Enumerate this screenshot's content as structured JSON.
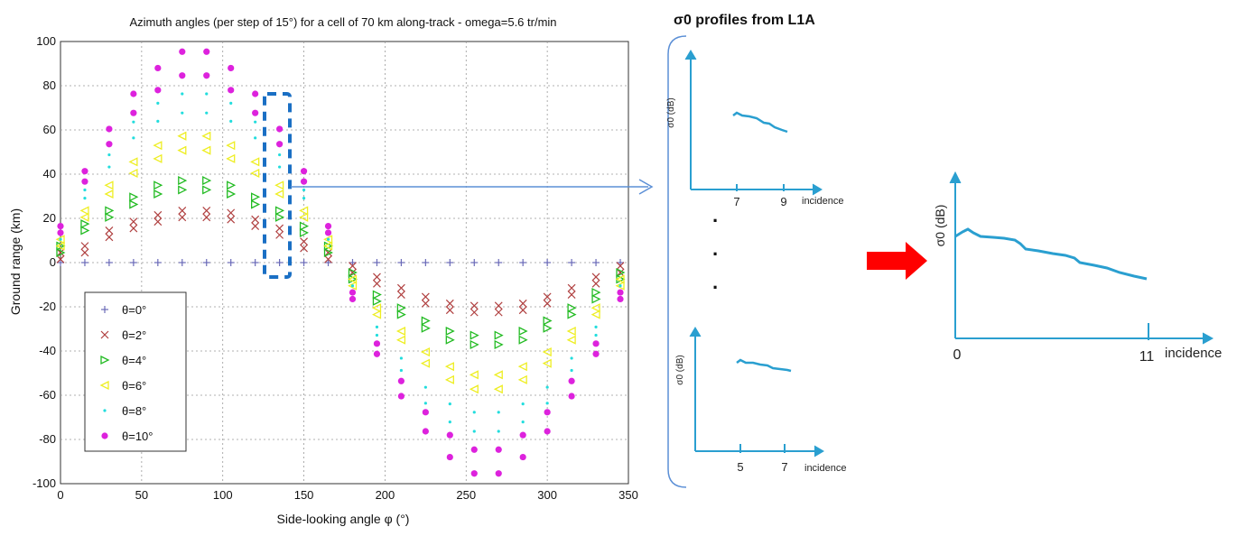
{
  "main_chart": {
    "title": "Azimuth angles (per step of 15°) for a cell of 70 km along-track - omega=5.6 tr/min",
    "xlabel": "Side-looking angle φ (°)",
    "ylabel": "Ground range (km)",
    "xticks": [
      "0",
      "50",
      "100",
      "150",
      "200",
      "250",
      "300",
      "350"
    ],
    "yticks": [
      "100",
      "80",
      "60",
      "40",
      "20",
      "0",
      "-20",
      "-40",
      "-60",
      "-80",
      "-100"
    ]
  },
  "chart_data": {
    "type": "scatter",
    "title": "Azimuth angles (per step of 15°) for a cell of 70 km along-track - omega=5.6 tr/min",
    "xlabel": "Side-looking angle φ (°)",
    "ylabel": "Ground range (km)",
    "xlim": [
      0,
      350
    ],
    "ylim": [
      -100,
      100
    ],
    "grid": true,
    "legend_position": "bottom-left",
    "x": [
      0,
      15,
      30,
      45,
      60,
      75,
      90,
      105,
      120,
      135,
      150,
      165,
      180,
      195,
      210,
      225,
      240,
      255,
      270,
      285,
      300,
      315,
      330,
      345
    ],
    "series": [
      {
        "name": "θ=0°",
        "marker": "plus",
        "color": "#6a6ab8",
        "y": [
          0,
          0,
          0,
          0,
          0,
          0,
          0,
          0,
          0,
          0,
          0,
          0,
          0,
          0,
          0,
          0,
          0,
          0,
          0,
          0,
          0,
          0,
          0,
          0
        ]
      },
      {
        "name": "θ=2°",
        "marker": "x",
        "color": "#b04040",
        "y": [
          3,
          6,
          13,
          17,
          20,
          22,
          22,
          21,
          18,
          14,
          8,
          3,
          -3,
          -8,
          -13,
          -17,
          -20,
          -21,
          -21,
          -20,
          -17,
          -13,
          -8,
          -3
        ]
      },
      {
        "name": "θ=4°",
        "marker": "triangle-right",
        "color": "#22bb22",
        "y": [
          6,
          16,
          22,
          28,
          33,
          35,
          35,
          33,
          28,
          22,
          15,
          6,
          -6,
          -16,
          -22,
          -28,
          -33,
          -35,
          -35,
          -33,
          -28,
          -22,
          -15,
          -6
        ]
      },
      {
        "name": "θ=6°",
        "marker": "triangle-left",
        "color": "#eeee22",
        "y": [
          9,
          22,
          33,
          43,
          50,
          54,
          54,
          50,
          43,
          33,
          22,
          9,
          -9,
          -22,
          -33,
          -43,
          -50,
          -54,
          -54,
          -50,
          -43,
          -33,
          -22,
          -9
        ]
      },
      {
        "name": "θ=8°",
        "marker": "dot",
        "color": "#22dddd",
        "y": [
          12,
          31,
          46,
          60,
          68,
          72,
          72,
          68,
          60,
          46,
          31,
          12,
          -12,
          -31,
          -46,
          -60,
          -68,
          -72,
          -72,
          -68,
          -60,
          -46,
          -31,
          -12
        ]
      },
      {
        "name": "θ=10°",
        "marker": "asterisk",
        "color": "#dd22dd",
        "y": [
          15,
          39,
          57,
          72,
          83,
          90,
          90,
          83,
          72,
          57,
          39,
          15,
          -15,
          -39,
          -57,
          -72,
          -83,
          -90,
          -90,
          -83,
          -72,
          -57,
          -39,
          -15
        ]
      }
    ]
  },
  "right_panel": {
    "title": "σ0 profiles from L1A",
    "top_profile": {
      "ylabel": "σ0 (dB)",
      "xticks": [
        "7",
        "9"
      ],
      "xlabel": "incidence"
    },
    "bottom_profile": {
      "ylabel": "σ0 (dB)",
      "xticks": [
        "5",
        "7"
      ],
      "xlabel": "incidence"
    },
    "combined_profile": {
      "ylabel": "σ0 (dB)",
      "xticks": [
        "0",
        "11"
      ],
      "xlabel": "incidence"
    },
    "ellipsis": "·",
    "accent_color": "#2a9fd0",
    "arrow_color": "#ff0000",
    "highlight_color": "#1a6fc4"
  }
}
